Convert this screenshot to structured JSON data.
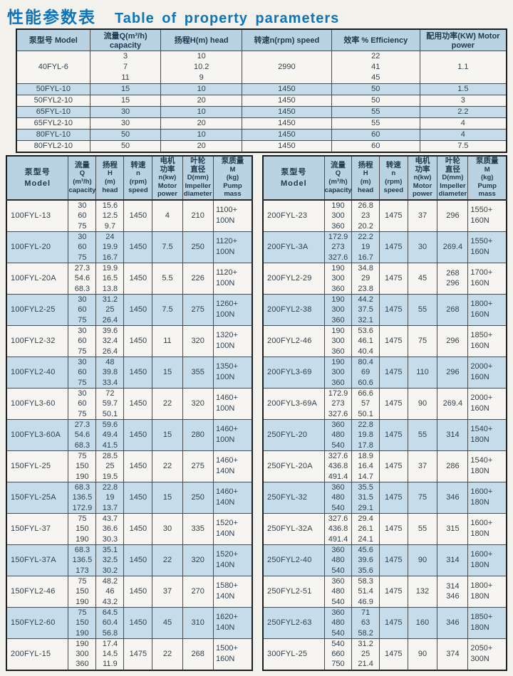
{
  "title": {
    "zh": "性能参数表",
    "en": "Table of property parameters"
  },
  "colors": {
    "accent_blue": "#0f74b8",
    "row_blue": "#c5dcea",
    "header_blue": "#b9d3e3",
    "row_white": "#f6f5f1",
    "border_dark": "#1d1d1d",
    "text": "#30414f"
  },
  "top_table": {
    "headers": [
      "泵型号  Model",
      "流量Q(m³/h) capacity",
      "扬程H(m)  head",
      "转速n(rpm)  speed",
      "效率 %  Efficiency",
      "配用功率(KW) Motor power"
    ],
    "rows": [
      {
        "model": "40FYL-6",
        "capacity": [
          "3",
          "7",
          "11"
        ],
        "head": [
          "10",
          "10.2",
          "9"
        ],
        "speed": "2990",
        "efficiency": [
          "22",
          "41",
          "45"
        ],
        "power": "1.1"
      },
      {
        "model": "50FYL-10",
        "capacity": [
          "15"
        ],
        "head": [
          "10"
        ],
        "speed": "1450",
        "efficiency": [
          "50"
        ],
        "power": "1.5"
      },
      {
        "model": "50FYL2-10",
        "capacity": [
          "15"
        ],
        "head": [
          "20"
        ],
        "speed": "1450",
        "efficiency": [
          "50"
        ],
        "power": "3"
      },
      {
        "model": "65FYL-10",
        "capacity": [
          "30"
        ],
        "head": [
          "10"
        ],
        "speed": "1450",
        "efficiency": [
          "55"
        ],
        "power": "2.2"
      },
      {
        "model": "65FYL2-10",
        "capacity": [
          "30"
        ],
        "head": [
          "20"
        ],
        "speed": "1450",
        "efficiency": [
          "55"
        ],
        "power": "4"
      },
      {
        "model": "80FYL-10",
        "capacity": [
          "50"
        ],
        "head": [
          "10"
        ],
        "speed": "1450",
        "efficiency": [
          "60"
        ],
        "power": "4"
      },
      {
        "model": "80FYL2-10",
        "capacity": [
          "50"
        ],
        "head": [
          "20"
        ],
        "speed": "1450",
        "efficiency": [
          "60"
        ],
        "power": "7.5"
      }
    ]
  },
  "detail_header": {
    "model": [
      "泵型号",
      "Model"
    ],
    "capacity": [
      "流量",
      "Q",
      "(m³/h)",
      "capacity"
    ],
    "head": [
      "扬程",
      "H",
      "(m)",
      "head"
    ],
    "speed": [
      "转速",
      "n",
      "(rpm)",
      "speed"
    ],
    "power": [
      "电机",
      "功率",
      "n(kw)",
      "Motor",
      "power"
    ],
    "diameter": [
      "叶轮",
      "直径",
      "D(mm)",
      "Impeller",
      "diameter"
    ],
    "mass": [
      "泵质量",
      "M",
      "(kg)",
      "Pump",
      "mass"
    ]
  },
  "left_table": {
    "rows": [
      {
        "model": "100FYL-13",
        "capacity": [
          "30",
          "60",
          "75"
        ],
        "head": [
          "15.6",
          "12.5",
          "9.7"
        ],
        "speed": "1450",
        "power": "4",
        "diameter": [
          "210"
        ],
        "mass": [
          "1100+",
          "100N"
        ]
      },
      {
        "model": "100FYL-20",
        "capacity": [
          "30",
          "60",
          "75"
        ],
        "head": [
          "24",
          "19.9",
          "16.7"
        ],
        "speed": "1450",
        "power": "7.5",
        "diameter": [
          "250"
        ],
        "mass": [
          "1120+",
          "100N"
        ]
      },
      {
        "model": "100FYL-20A",
        "capacity": [
          "27.3",
          "54.6",
          "68.3"
        ],
        "head": [
          "19.9",
          "16.5",
          "13.8"
        ],
        "speed": "1450",
        "power": "5.5",
        "diameter": [
          "226"
        ],
        "mass": [
          "1120+",
          "100N"
        ]
      },
      {
        "model": "100FYL2-25",
        "capacity": [
          "30",
          "60",
          "75"
        ],
        "head": [
          "31.2",
          "25",
          "26.4"
        ],
        "speed": "1450",
        "power": "7.5",
        "diameter": [
          "275"
        ],
        "mass": [
          "1260+",
          "100N"
        ]
      },
      {
        "model": "100FYL2-32",
        "capacity": [
          "30",
          "60",
          "75"
        ],
        "head": [
          "39.6",
          "32.4",
          "26.4"
        ],
        "speed": "1450",
        "power": "11",
        "diameter": [
          "320"
        ],
        "mass": [
          "1320+",
          "100N"
        ]
      },
      {
        "model": "100FYL2-40",
        "capacity": [
          "30",
          "60",
          "75"
        ],
        "head": [
          "48",
          "39.8",
          "33.4"
        ],
        "speed": "1450",
        "power": "15",
        "diameter": [
          "355"
        ],
        "mass": [
          "1350+",
          "100N"
        ]
      },
      {
        "model": "100FYL3-60",
        "capacity": [
          "30",
          "60",
          "75"
        ],
        "head": [
          "72",
          "59.7",
          "50.1"
        ],
        "speed": "1450",
        "power": "22",
        "diameter": [
          "320"
        ],
        "mass": [
          "1460+",
          "100N"
        ]
      },
      {
        "model": "100FYL3-60A",
        "capacity": [
          "27.3",
          "54.6",
          "68.3"
        ],
        "head": [
          "59.6",
          "49.4",
          "41.5"
        ],
        "speed": "1450",
        "power": "15",
        "diameter": [
          "280"
        ],
        "mass": [
          "1460+",
          "100N"
        ]
      },
      {
        "model": "150FYL-25",
        "capacity": [
          "75",
          "150",
          "190"
        ],
        "head": [
          "28.5",
          "25",
          "19.5"
        ],
        "speed": "1450",
        "power": "22",
        "diameter": [
          "275"
        ],
        "mass": [
          "1460+",
          "140N"
        ]
      },
      {
        "model": "150FYL-25A",
        "capacity": [
          "68.3",
          "136.5",
          "172.9"
        ],
        "head": [
          "22.8",
          "19",
          "13.7"
        ],
        "speed": "1450",
        "power": "15",
        "diameter": [
          "250"
        ],
        "mass": [
          "1460+",
          "140N"
        ]
      },
      {
        "model": "150FYL-37",
        "capacity": [
          "75",
          "150",
          "190"
        ],
        "head": [
          "43.7",
          "36.6",
          "30.3"
        ],
        "speed": "1450",
        "power": "30",
        "diameter": [
          "335"
        ],
        "mass": [
          "1520+",
          "140N"
        ]
      },
      {
        "model": "150FYL-37A",
        "capacity": [
          "68.3",
          "136.5",
          "173"
        ],
        "head": [
          "35.1",
          "32.5",
          "30.2"
        ],
        "speed": "1450",
        "power": "22",
        "diameter": [
          "320"
        ],
        "mass": [
          "1520+",
          "140N"
        ]
      },
      {
        "model": "150FYL2-46",
        "capacity": [
          "75",
          "150",
          "190"
        ],
        "head": [
          "48.2",
          "46",
          "43.2"
        ],
        "speed": "1450",
        "power": "37",
        "diameter": [
          "270"
        ],
        "mass": [
          "1580+",
          "140N"
        ]
      },
      {
        "model": "150FYL2-60",
        "capacity": [
          "75",
          "150",
          "190"
        ],
        "head": [
          "64.5",
          "60.4",
          "56.8"
        ],
        "speed": "1450",
        "power": "45",
        "diameter": [
          "310"
        ],
        "mass": [
          "1620+",
          "140N"
        ]
      },
      {
        "model": "200FYL-15",
        "capacity": [
          "190",
          "300",
          "360"
        ],
        "head": [
          "17.4",
          "14.5",
          "11.9"
        ],
        "speed": "1475",
        "power": "22",
        "diameter": [
          "268"
        ],
        "mass": [
          "1500+",
          "160N"
        ]
      }
    ]
  },
  "right_table": {
    "rows": [
      {
        "model": "200FYL-23",
        "capacity": [
          "190",
          "300",
          "360"
        ],
        "head": [
          "26.8",
          "23",
          "20.2"
        ],
        "speed": "1475",
        "power": "37",
        "diameter": [
          "296"
        ],
        "mass": [
          "1550+",
          "160N"
        ]
      },
      {
        "model": "200FYL-3A",
        "capacity": [
          "172.9",
          "273",
          "327.6"
        ],
        "head": [
          "22.2",
          "19",
          "16.7"
        ],
        "speed": "1475",
        "power": "30",
        "diameter": [
          "269.4"
        ],
        "mass": [
          "1550+",
          "160N"
        ]
      },
      {
        "model": "200FYL2-29",
        "capacity": [
          "190",
          "300",
          "360"
        ],
        "head": [
          "34.8",
          "29",
          "23.8"
        ],
        "speed": "1475",
        "power": "45",
        "diameter": [
          "268",
          "296"
        ],
        "mass": [
          "1700+",
          "160N"
        ]
      },
      {
        "model": "200FYL2-38",
        "capacity": [
          "190",
          "300",
          "360"
        ],
        "head": [
          "44.2",
          "37.5",
          "32.1"
        ],
        "speed": "1475",
        "power": "55",
        "diameter": [
          "268"
        ],
        "mass": [
          "1800+",
          "160N"
        ]
      },
      {
        "model": "200FYL2-46",
        "capacity": [
          "190",
          "300",
          "360"
        ],
        "head": [
          "53.6",
          "46.1",
          "40.4"
        ],
        "speed": "1475",
        "power": "75",
        "diameter": [
          "296"
        ],
        "mass": [
          "1850+",
          "160N"
        ]
      },
      {
        "model": "200FYL3-69",
        "capacity": [
          "190",
          "300",
          "360"
        ],
        "head": [
          "80.4",
          "69",
          "60.6"
        ],
        "speed": "1475",
        "power": "110",
        "diameter": [
          "296"
        ],
        "mass": [
          "2000+",
          "160N"
        ]
      },
      {
        "model": "200FYL3-69A",
        "capacity": [
          "172.9",
          "273",
          "327.6"
        ],
        "head": [
          "66.6",
          "57",
          "50.1"
        ],
        "speed": "1475",
        "power": "90",
        "diameter": [
          "269.4"
        ],
        "mass": [
          "2000+",
          "160N"
        ]
      },
      {
        "model": "250FYL-20",
        "capacity": [
          "360",
          "480",
          "540"
        ],
        "head": [
          "22.8",
          "19.8",
          "17.8"
        ],
        "speed": "1475",
        "power": "55",
        "diameter": [
          "314"
        ],
        "mass": [
          "1540+",
          "180N"
        ]
      },
      {
        "model": "250FYL-20A",
        "capacity": [
          "327.6",
          "436.8",
          "491.4"
        ],
        "head": [
          "18.9",
          "16.4",
          "14.7"
        ],
        "speed": "1475",
        "power": "37",
        "diameter": [
          "286"
        ],
        "mass": [
          "1540+",
          "180N"
        ]
      },
      {
        "model": "250FYL-32",
        "capacity": [
          "360",
          "480",
          "540"
        ],
        "head": [
          "35.5",
          "31.5",
          "29.1"
        ],
        "speed": "1475",
        "power": "75",
        "diameter": [
          "346"
        ],
        "mass": [
          "1600+",
          "180N"
        ]
      },
      {
        "model": "250FYL-32A",
        "capacity": [
          "327.6",
          "436.8",
          "491.4"
        ],
        "head": [
          "29.4",
          "26.1",
          "24.1"
        ],
        "speed": "1475",
        "power": "55",
        "diameter": [
          "315"
        ],
        "mass": [
          "1600+",
          "180N"
        ]
      },
      {
        "model": "250FYL2-40",
        "capacity": [
          "360",
          "480",
          "540"
        ],
        "head": [
          "45.6",
          "39.6",
          "35.6"
        ],
        "speed": "1475",
        "power": "90",
        "diameter": [
          "314"
        ],
        "mass": [
          "1600+",
          "180N"
        ]
      },
      {
        "model": "250FYL2-51",
        "capacity": [
          "360",
          "480",
          "540"
        ],
        "head": [
          "58.3",
          "51.4",
          "46.9"
        ],
        "speed": "1475",
        "power": "132",
        "diameter": [
          "314",
          "346"
        ],
        "mass": [
          "1800+",
          "180N"
        ]
      },
      {
        "model": "250FYL2-63",
        "capacity": [
          "360",
          "480",
          "540"
        ],
        "head": [
          "71",
          "63",
          "58.2"
        ],
        "speed": "1475",
        "power": "160",
        "diameter": [
          "346"
        ],
        "mass": [
          "1850+",
          "180N"
        ]
      },
      {
        "model": "300FYL-25",
        "capacity": [
          "540",
          "660",
          "750"
        ],
        "head": [
          "31.2",
          "25",
          "21.4"
        ],
        "speed": "1475",
        "power": "90",
        "diameter": [
          "374"
        ],
        "mass": [
          "2050+",
          "300N"
        ]
      }
    ]
  }
}
